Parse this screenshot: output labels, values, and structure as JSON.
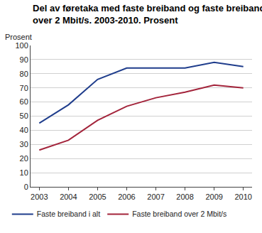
{
  "chart_data": {
    "type": "line",
    "title": "Del av føretaka med faste breiband og faste breiband\nover 2 Mbit/s. 2003-2010. Prosent",
    "y_label": "Prosent",
    "x": [
      2003,
      2004,
      2005,
      2006,
      2007,
      2008,
      2009,
      2010
    ],
    "series": [
      {
        "name": "Faste breiband i alt",
        "color": "#1f3d8c",
        "values": [
          45,
          58,
          76,
          84,
          84,
          84,
          88,
          85
        ]
      },
      {
        "name": "Faste breiband over 2 Mbit/s",
        "color": "#a3243b",
        "values": [
          26,
          33,
          47,
          57,
          63,
          67,
          72,
          70
        ]
      }
    ],
    "xlim": [
      2002.7,
      2010.3
    ],
    "xticks": [
      2003,
      2004,
      2005,
      2006,
      2007,
      2008,
      2009,
      2010
    ],
    "ylim": [
      0,
      100
    ],
    "yticks": [
      0,
      10,
      20,
      30,
      40,
      50,
      60,
      70,
      80,
      90,
      100
    ],
    "grid": true,
    "legend": "bottom"
  }
}
